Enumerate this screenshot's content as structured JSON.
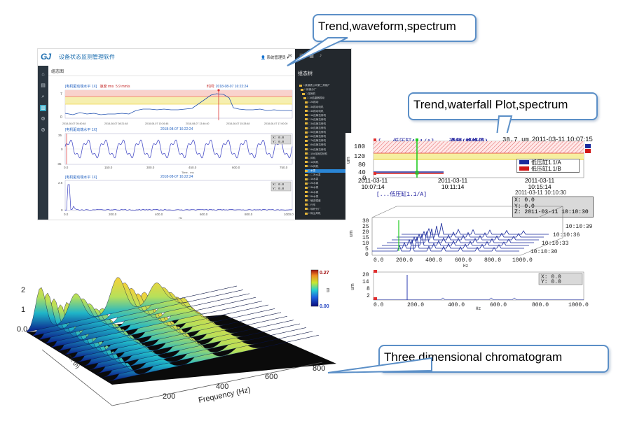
{
  "callouts": {
    "trend_waveform_spectrum": "Trend,waveform,spectrum",
    "trend_waterfall_spectrum": "Trend,waterfall Plot,spectrum",
    "three_dimensional": "Three dimensional chromatogram"
  },
  "software": {
    "logo": "GJ",
    "title": "设备状态监测管理软件",
    "user_menu": "系统管理员",
    "tab": "组态图",
    "tree_title": "组态树",
    "tree_rows": [
      "□ 某钢铁公司第二炼钢厂",
      "□ 炼钢分厂",
      "□ 连铸机",
      "□ 1#结晶器振动",
      "□ 2#振动",
      "□ 3#振动电机",
      "□ 4#振动电机",
      "□ 1#连铸拉矫机",
      "□ 2#连铸拉矫机",
      "□ 3#连铸拉矫机",
      "□ 4#连铸拉矫机",
      "□ 5#连铸拉矫机",
      "□ 6#连铸拉矫机",
      "□ 7#连铸拉矫机",
      "□ 8#连铸拉矫机",
      "□ 9#连铸拉矫机",
      "□ 10#连铸拉矫机",
      "□ 风机",
      "□ 1#风机",
      "□ 2#风机",
      "□ 水泵",
      "□ 二冷水泵",
      "□ 1#水泵",
      "□ 2#水泵",
      "□ 3#水泵",
      "□ 4#水泵",
      "□ 5#水泵",
      "□ 输送辊道",
      "□ 行车",
      "□ 转炉分厂",
      "□ 除尘风机"
    ],
    "trend": {
      "header_left": "[电机驱动端水平 1X]",
      "header_mid": "速度 rms",
      "header_val": "5.9 mm/s",
      "header_time_label": "时间:",
      "header_time": "2018-08-07 16:22:24",
      "y_ticks": [
        "7",
        "0"
      ],
      "x_ticks": [
        "2018-08-07 05:40:48",
        "2018-08-07 08:21:48",
        "2018-08-07 10:26:48",
        "2018-08-07 13:46:40",
        "2018-08-07 15:28:48",
        "2018-08-07 17:00:00"
      ]
    },
    "waveform": {
      "header_left": "[电机驱动端水平 1X]",
      "header_time": "2018-08-07 16:22:24",
      "y_ticks": [
        "35",
        "0",
        "-35"
      ],
      "x_ticks": [
        "0.0",
        "150.0",
        "300.0",
        "450.0",
        "600.0",
        "750.0"
      ],
      "x_label": "Time - ms",
      "readout": [
        "X: 0.0",
        "Y: 0.0"
      ]
    },
    "spectrum": {
      "header_left": "[电机驱动端水平 1X]",
      "header_time": "2018-08-07 16:22:24",
      "y_ticks": [
        "2.6",
        "0"
      ],
      "x_ticks": [
        "0.0",
        "200.0",
        "400.0",
        "600.0",
        "800.0",
        "1000.0"
      ],
      "x_label": "Hz",
      "readout": [
        "X: 0.0",
        "Y: 0.0"
      ]
    }
  },
  "panel2": {
    "trend": {
      "title_left": "[...低压缸1.1/A]",
      "title_mid": "通频(峰峰值)",
      "title_value": "38.7 um",
      "title_time": "2011-03-11 10:07:15",
      "y_ticks": [
        "180",
        "120",
        "80",
        "40",
        "0"
      ],
      "y_label": "um",
      "x_ticks": [
        "2011-03-11\n10:07:14",
        "2011-03-11\n10:11:14",
        "2011-03-11\n10:15:14"
      ],
      "legend": [
        "低压缸1.1/A",
        "低压缸1.1/B"
      ],
      "legend_colors": [
        "#1a2a9c",
        "#d01818"
      ]
    },
    "waterfall": {
      "title_left": "[...低压缸1.1/A]",
      "title_time": "2011-03-11 10:10:30",
      "readout": [
        "X: 0.0",
        "Y: 0.0",
        "Z: 2011-03-11 10:10:30"
      ],
      "y_ticks": [
        "30",
        "25",
        "20",
        "15",
        "10",
        "5",
        "0"
      ],
      "y_label": "um",
      "x_ticks": [
        "0.0",
        "200.0",
        "400.0",
        "600.0",
        "800.0",
        "1000.0"
      ],
      "x_label": "Hz",
      "z_ticks": [
        "10:10:39",
        "10:10:36",
        "10:10:33",
        "10:10:30"
      ]
    },
    "spectrum": {
      "y_ticks": [
        "20",
        "14",
        "8",
        "2"
      ],
      "y_label": "um",
      "x_ticks": [
        "0.0",
        "200.0",
        "400.0",
        "600.0",
        "800.0",
        "1000.0"
      ],
      "x_label": "Hz",
      "readout": [
        "X: 0.0",
        "Y: 0.0"
      ]
    }
  },
  "panel3": {
    "z_ticks": [
      "2",
      "1",
      "0.0"
    ],
    "x_ticks": [
      "200",
      "400",
      "600",
      "800"
    ],
    "x_label": "Frequency (Hz)",
    "y_label": "Time (h)",
    "colorbar_max": "0.27",
    "colorbar_min": "0.00",
    "colorbar_label": "m"
  },
  "colors": {
    "callout_border": "#5b8fc7",
    "sidebar": "#2b3640",
    "tree_bg": "#23282d",
    "accent": "#33a5c2",
    "trend_line": "#2050b0",
    "alarm_red": "#e03030",
    "warn_yellow": "#f4ec9a"
  }
}
